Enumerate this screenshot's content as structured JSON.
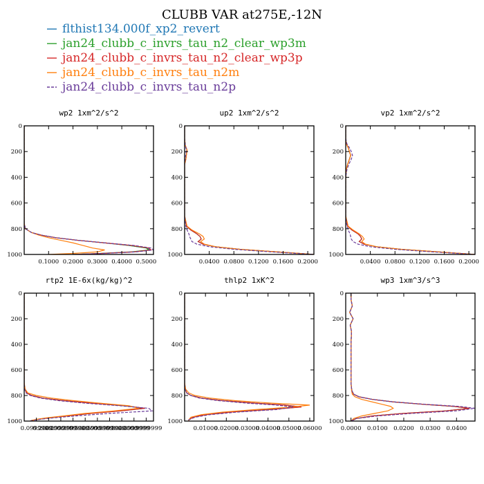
{
  "figure_title": "CLUBB VAR at275E,-12N",
  "legend": [
    {
      "label": "flthist134.000f_xp2_revert",
      "color": "#1f77b4",
      "dash": "solid"
    },
    {
      "label": "jan24_clubb_c_invrs_tau_n2_clear_wp3m",
      "color": "#2ca02c",
      "dash": "solid"
    },
    {
      "label": "jan24_clubb_c_invrs_tau_n2_clear_wp3p",
      "color": "#d62728",
      "dash": "solid"
    },
    {
      "label": "jan24_clubb_c_invrs_tau_n2m",
      "color": "#ff7f0e",
      "dash": "solid"
    },
    {
      "label": "jan24_clubb_c_invrs_tau_n2p",
      "color": "#6a3d9a",
      "dash": "dashed"
    }
  ],
  "chart_data": [
    {
      "type": "line",
      "title": "wp2  1xm^2/s^2",
      "xlim": [
        0,
        0.53
      ],
      "ylim": [
        1000,
        0
      ],
      "xticks": [
        0.1,
        0.2,
        0.3,
        0.4,
        0.5
      ],
      "xticklabels": [
        "0.1000",
        "0.2000",
        "0.3000",
        "0.4000",
        "0.5000"
      ],
      "yticks": [
        0,
        200,
        400,
        600,
        800,
        1000
      ],
      "y": [
        0,
        100,
        200,
        300,
        400,
        500,
        600,
        700,
        760,
        800,
        830,
        850,
        870,
        890,
        910,
        930,
        950,
        965,
        980,
        992,
        1000
      ],
      "series": [
        {
          "x": [
            0.0,
            0.0,
            0.0,
            0.0,
            0.0,
            0.0,
            0.0,
            0.0,
            0.0,
            0.005,
            0.03,
            0.07,
            0.13,
            0.22,
            0.33,
            0.43,
            0.5,
            0.52,
            0.45,
            0.32,
            0.2
          ]
        },
        {
          "x": [
            0.0,
            0.0,
            0.0,
            0.0,
            0.0,
            0.0,
            0.0,
            0.0,
            0.0,
            0.005,
            0.03,
            0.07,
            0.13,
            0.22,
            0.33,
            0.43,
            0.5,
            0.51,
            0.44,
            0.31,
            0.2
          ]
        },
        {
          "x": [
            0.0,
            0.0,
            0.0,
            0.0,
            0.0,
            0.0,
            0.0,
            0.0,
            0.0,
            0.005,
            0.03,
            0.07,
            0.13,
            0.22,
            0.33,
            0.44,
            0.51,
            0.52,
            0.45,
            0.32,
            0.2
          ]
        },
        {
          "x": [
            0.0,
            0.0,
            0.0,
            0.0,
            0.0,
            0.0,
            0.0,
            0.0,
            0.0,
            0.005,
            0.03,
            0.06,
            0.1,
            0.15,
            0.2,
            0.24,
            0.28,
            0.33,
            0.3,
            0.2,
            0.1
          ]
        },
        {
          "x": [
            0.0,
            0.0,
            0.0,
            0.0,
            0.0,
            0.0,
            0.0,
            0.0,
            0.0,
            0.005,
            0.03,
            0.07,
            0.13,
            0.22,
            0.33,
            0.45,
            0.52,
            0.53,
            0.46,
            0.33,
            0.2
          ]
        }
      ]
    },
    {
      "type": "line",
      "title": "up2  1xm^2/s^2",
      "xlim": [
        0,
        0.21
      ],
      "ylim": [
        1000,
        0
      ],
      "xticks": [
        0.04,
        0.08,
        0.12,
        0.16,
        0.2
      ],
      "xticklabels": [
        "0.0400",
        "0.0800",
        "0.1200",
        "0.1600",
        "0.2000"
      ],
      "yticks": [
        0,
        200,
        400,
        600,
        800,
        1000
      ],
      "y": [
        0,
        100,
        150,
        190,
        220,
        260,
        300,
        400,
        500,
        600,
        700,
        780,
        810,
        840,
        860,
        880,
        900,
        920,
        940,
        960,
        980,
        1000
      ],
      "series": [
        {
          "x": [
            0.0,
            0.0,
            0.001,
            0.004,
            0.003,
            0.002,
            0.0,
            0.0,
            0.0,
            0.0,
            0.0,
            0.003,
            0.01,
            0.02,
            0.025,
            0.027,
            0.022,
            0.03,
            0.05,
            0.09,
            0.15,
            0.21
          ]
        },
        {
          "x": [
            0.0,
            0.0,
            0.001,
            0.004,
            0.003,
            0.002,
            0.0,
            0.0,
            0.0,
            0.0,
            0.0,
            0.003,
            0.01,
            0.02,
            0.025,
            0.027,
            0.022,
            0.03,
            0.05,
            0.09,
            0.15,
            0.21
          ]
        },
        {
          "x": [
            0.0,
            0.0,
            0.001,
            0.004,
            0.003,
            0.002,
            0.0,
            0.0,
            0.0,
            0.0,
            0.0,
            0.003,
            0.01,
            0.02,
            0.025,
            0.027,
            0.022,
            0.03,
            0.05,
            0.09,
            0.15,
            0.21
          ]
        },
        {
          "x": [
            0.0,
            0.0,
            0.001,
            0.004,
            0.003,
            0.002,
            0.0,
            0.0,
            0.0,
            0.0,
            0.0,
            0.004,
            0.012,
            0.024,
            0.03,
            0.032,
            0.026,
            0.032,
            0.05,
            0.09,
            0.15,
            0.21
          ]
        },
        {
          "x": [
            0.0,
            0.0,
            0.001,
            0.003,
            0.002,
            0.001,
            0.0,
            0.0,
            0.0,
            0.0,
            0.0,
            0.002,
            0.004,
            0.007,
            0.008,
            0.01,
            0.012,
            0.02,
            0.04,
            0.08,
            0.14,
            0.21
          ]
        }
      ]
    },
    {
      "type": "line",
      "title": "vp2  1xm^2/s^2",
      "xlim": [
        0,
        0.21
      ],
      "ylim": [
        1000,
        0
      ],
      "xticks": [
        0.04,
        0.08,
        0.12,
        0.16,
        0.2
      ],
      "xticklabels": [
        "0.0400",
        "0.0800",
        "0.1200",
        "0.1600",
        "0.2000"
      ],
      "yticks": [
        0,
        200,
        400,
        600,
        800,
        1000
      ],
      "y": [
        0,
        100,
        140,
        170,
        200,
        230,
        260,
        300,
        340,
        400,
        500,
        600,
        700,
        780,
        810,
        840,
        860,
        880,
        900,
        920,
        940,
        960,
        980,
        1000
      ],
      "series": [
        {
          "x": [
            0.0,
            0.0,
            0.001,
            0.004,
            0.006,
            0.008,
            0.006,
            0.003,
            0.001,
            0.0,
            0.0,
            0.0,
            0.0,
            0.003,
            0.01,
            0.02,
            0.024,
            0.026,
            0.022,
            0.03,
            0.05,
            0.09,
            0.15,
            0.21
          ]
        },
        {
          "x": [
            0.0,
            0.0,
            0.001,
            0.004,
            0.006,
            0.008,
            0.006,
            0.003,
            0.001,
            0.0,
            0.0,
            0.0,
            0.0,
            0.003,
            0.01,
            0.02,
            0.024,
            0.026,
            0.022,
            0.03,
            0.05,
            0.09,
            0.15,
            0.21
          ]
        },
        {
          "x": [
            0.0,
            0.0,
            0.001,
            0.004,
            0.006,
            0.008,
            0.006,
            0.003,
            0.001,
            0.0,
            0.0,
            0.0,
            0.0,
            0.003,
            0.01,
            0.02,
            0.024,
            0.026,
            0.022,
            0.03,
            0.05,
            0.09,
            0.15,
            0.21
          ]
        },
        {
          "x": [
            0.0,
            0.0,
            0.001,
            0.004,
            0.006,
            0.008,
            0.006,
            0.003,
            0.001,
            0.0,
            0.0,
            0.0,
            0.0,
            0.004,
            0.012,
            0.022,
            0.027,
            0.03,
            0.026,
            0.032,
            0.05,
            0.09,
            0.15,
            0.21
          ]
        },
        {
          "x": [
            0.0,
            0.0,
            0.002,
            0.006,
            0.009,
            0.011,
            0.009,
            0.005,
            0.002,
            0.0,
            0.0,
            0.0,
            0.0,
            0.002,
            0.004,
            0.007,
            0.008,
            0.009,
            0.012,
            0.02,
            0.04,
            0.08,
            0.14,
            0.21
          ]
        }
      ]
    },
    {
      "type": "line",
      "title": "rtp2  1E-6x(kg/kg)^2",
      "xlim": [
        0,
        1.06
      ],
      "ylim": [
        1000,
        0
      ],
      "xticks": [
        0.1,
        0.2,
        0.3,
        0.4,
        0.5,
        0.6,
        0.7,
        0.8,
        0.9,
        1.0
      ],
      "xticklabels": [
        "0.0999999",
        "0.2000000",
        "0.2999999",
        "0.3999999",
        "0.5000000",
        "0.5999999",
        "0.6999999",
        "0.8000000",
        "0.8999999",
        "0.9999999"
      ],
      "yticks": [
        0,
        200,
        400,
        600,
        800,
        1000
      ],
      "y": [
        0,
        100,
        200,
        300,
        400,
        500,
        600,
        700,
        750,
        780,
        800,
        820,
        840,
        860,
        880,
        900,
        920,
        940,
        960,
        975,
        985,
        995,
        1000
      ],
      "series": [
        {
          "x": [
            0.0,
            0.0,
            0.0,
            0.0,
            0.0,
            0.0,
            0.0,
            0.0,
            0.005,
            0.02,
            0.06,
            0.15,
            0.32,
            0.55,
            0.82,
            0.99,
            0.8,
            0.55,
            0.35,
            0.2,
            0.12,
            0.06,
            0.05
          ]
        },
        {
          "x": [
            0.0,
            0.0,
            0.0,
            0.0,
            0.0,
            0.0,
            0.0,
            0.0,
            0.005,
            0.02,
            0.06,
            0.15,
            0.32,
            0.55,
            0.82,
            0.98,
            0.79,
            0.55,
            0.35,
            0.2,
            0.12,
            0.06,
            0.05
          ]
        },
        {
          "x": [
            0.0,
            0.0,
            0.0,
            0.0,
            0.0,
            0.0,
            0.0,
            0.0,
            0.005,
            0.02,
            0.06,
            0.15,
            0.32,
            0.55,
            0.83,
            0.99,
            0.8,
            0.55,
            0.35,
            0.2,
            0.12,
            0.06,
            0.05
          ]
        },
        {
          "x": [
            0.0,
            0.0,
            0.0,
            0.0,
            0.0,
            0.0,
            0.0,
            0.0,
            0.008,
            0.03,
            0.1,
            0.22,
            0.4,
            0.62,
            0.86,
            0.94,
            0.74,
            0.5,
            0.32,
            0.18,
            0.11,
            0.06,
            0.05
          ]
        },
        {
          "x": [
            0.0,
            0.0,
            0.0,
            0.0,
            0.0,
            0.0,
            0.0,
            0.0,
            0.004,
            0.015,
            0.05,
            0.13,
            0.28,
            0.5,
            0.78,
            1.02,
            1.05,
            0.7,
            0.42,
            0.24,
            0.14,
            0.07,
            0.05
          ]
        }
      ]
    },
    {
      "type": "line",
      "title": "thlp2  1xK^2",
      "xlim": [
        0,
        0.062
      ],
      "ylim": [
        1000,
        0
      ],
      "xticks": [
        0.01,
        0.02,
        0.03,
        0.04,
        0.05,
        0.06
      ],
      "xticklabels": [
        "0.01000",
        "0.02000",
        "0.03000",
        "0.04000",
        "0.05000",
        "0.06000"
      ],
      "yticks": [
        0,
        200,
        400,
        600,
        800,
        1000
      ],
      "y": [
        0,
        100,
        200,
        300,
        400,
        500,
        600,
        700,
        750,
        780,
        800,
        820,
        840,
        860,
        875,
        890,
        910,
        930,
        950,
        970,
        990,
        1000
      ],
      "series": [
        {
          "x": [
            0.0,
            0.0,
            0.0,
            0.0,
            0.0,
            0.0,
            0.0,
            0.0,
            0.0003,
            0.001,
            0.003,
            0.008,
            0.018,
            0.034,
            0.048,
            0.056,
            0.04,
            0.022,
            0.01,
            0.004,
            0.002,
            0.002
          ]
        },
        {
          "x": [
            0.0,
            0.0,
            0.0,
            0.0,
            0.0,
            0.0,
            0.0,
            0.0,
            0.0003,
            0.001,
            0.003,
            0.008,
            0.018,
            0.034,
            0.048,
            0.055,
            0.04,
            0.022,
            0.01,
            0.004,
            0.002,
            0.002
          ]
        },
        {
          "x": [
            0.0,
            0.0,
            0.0,
            0.0,
            0.0,
            0.0,
            0.0,
            0.0,
            0.0003,
            0.001,
            0.003,
            0.008,
            0.018,
            0.034,
            0.048,
            0.056,
            0.041,
            0.022,
            0.01,
            0.004,
            0.002,
            0.002
          ]
        },
        {
          "x": [
            0.0,
            0.0,
            0.0,
            0.0,
            0.0,
            0.0,
            0.0,
            0.0,
            0.0005,
            0.002,
            0.005,
            0.012,
            0.024,
            0.042,
            0.06,
            0.052,
            0.034,
            0.018,
            0.008,
            0.003,
            0.002,
            0.002
          ]
        },
        {
          "x": [
            0.0,
            0.0,
            0.0,
            0.0,
            0.0,
            0.0,
            0.0,
            0.0,
            0.0002,
            0.001,
            0.003,
            0.007,
            0.016,
            0.03,
            0.044,
            0.052,
            0.044,
            0.025,
            0.012,
            0.005,
            0.002,
            0.002
          ]
        }
      ]
    },
    {
      "type": "line",
      "title": "wp3  1xm^3/s^3",
      "xlim": [
        -0.002,
        0.047
      ],
      "ylim": [
        1000,
        0
      ],
      "xticks": [
        0.0,
        0.01,
        0.02,
        0.03,
        0.04
      ],
      "xticklabels": [
        "0.0000",
        "0.0100",
        "0.0200",
        "0.0300",
        "0.0400"
      ],
      "yticks": [
        0,
        200,
        400,
        600,
        800,
        1000
      ],
      "y": [
        0,
        50,
        100,
        150,
        200,
        250,
        300,
        400,
        500,
        600,
        700,
        760,
        790,
        810,
        830,
        850,
        870,
        885,
        900,
        920,
        940,
        960,
        980,
        1000
      ],
      "series": [
        {
          "x": [
            0.0,
            0.0,
            0.0005,
            -0.0005,
            0.0008,
            -0.0003,
            0.0002,
            0.0,
            0.0,
            0.0,
            0.0,
            0.0003,
            0.001,
            0.003,
            0.008,
            0.016,
            0.028,
            0.039,
            0.045,
            0.036,
            0.02,
            0.008,
            0.002,
            0.0
          ]
        },
        {
          "x": [
            0.0,
            0.0,
            0.0005,
            -0.0005,
            0.0008,
            -0.0003,
            0.0002,
            0.0,
            0.0,
            0.0,
            0.0,
            0.0003,
            0.001,
            0.003,
            0.008,
            0.016,
            0.028,
            0.039,
            0.045,
            0.036,
            0.02,
            0.008,
            0.002,
            0.0
          ]
        },
        {
          "x": [
            0.0,
            0.0,
            0.0005,
            -0.0005,
            0.0008,
            -0.0003,
            0.0002,
            0.0,
            0.0,
            0.0,
            0.0,
            0.0003,
            0.001,
            0.003,
            0.008,
            0.016,
            0.028,
            0.039,
            0.045,
            0.036,
            0.02,
            0.008,
            0.002,
            0.0
          ]
        },
        {
          "x": [
            0.0,
            0.0,
            0.0005,
            -0.0005,
            0.0008,
            -0.0003,
            0.0002,
            0.0,
            0.0,
            0.0,
            0.0,
            0.0002,
            0.0005,
            0.0015,
            0.004,
            0.008,
            0.012,
            0.015,
            0.016,
            0.014,
            0.009,
            0.004,
            0.001,
            0.0
          ]
        },
        {
          "x": [
            0.0,
            0.0,
            0.0005,
            -0.0005,
            0.0008,
            -0.0003,
            0.0002,
            0.0,
            0.0,
            0.0,
            0.0,
            0.0003,
            0.001,
            0.003,
            0.008,
            0.016,
            0.029,
            0.041,
            0.047,
            0.04,
            0.023,
            0.01,
            0.002,
            0.0
          ]
        }
      ]
    }
  ]
}
